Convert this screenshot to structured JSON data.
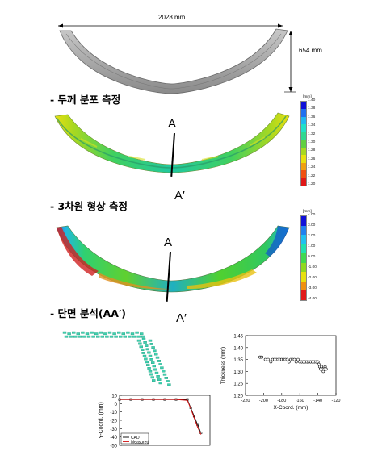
{
  "dimensions": {
    "width_label": "2028 mm",
    "height_label": "654 mm"
  },
  "sections": {
    "thickness": "- 두께 분포 측정",
    "shape3d": "- 3차원 형상 측정",
    "cross": "- 단면 분석(AA′)"
  },
  "markers": {
    "a": "A",
    "a_prime": "A′"
  },
  "thickness_scale": {
    "unit": "[mm]",
    "ticks": [
      "1.40",
      "1.38",
      "1.36",
      "1.34",
      "1.32",
      "1.30",
      "1.28",
      "1.26",
      "1.24",
      "1.22",
      "1.20"
    ],
    "colors": [
      "#1010d8",
      "#2070f0",
      "#20b8f0",
      "#20e0c8",
      "#30d890",
      "#60d040",
      "#a8d820",
      "#e8e010",
      "#f0a010",
      "#f05010",
      "#e01818"
    ]
  },
  "deviation_scale": {
    "unit": "[mm]",
    "ticks": [
      "4.00",
      "3.00",
      "2.00",
      "1.00",
      "0.00",
      "-1.00",
      "-2.00",
      "-3.00",
      "-4.00"
    ],
    "colors": [
      "#1010d8",
      "#2080f0",
      "#20c0f0",
      "#20e0b0",
      "#40d850",
      "#90d820",
      "#e8e010",
      "#f09010",
      "#e01818"
    ]
  },
  "chart_data": [
    {
      "type": "line",
      "title": "",
      "xlabel": "",
      "ylabel": "Y-Coord. (mm)",
      "ylim": [
        -50,
        10
      ],
      "y_ticks": [
        "10",
        "0",
        "-10",
        "-20",
        "-30",
        "-40",
        "-50"
      ],
      "legend": "bottom-left",
      "series": [
        {
          "name": "CAD",
          "x": [
            0,
            10,
            20,
            30,
            40,
            50,
            60,
            63,
            66,
            69,
            72
          ],
          "y": [
            5,
            5,
            5,
            5,
            5,
            5,
            5,
            -5,
            -15,
            -25,
            -35
          ]
        },
        {
          "name": "Measured",
          "x": [
            0,
            10,
            20,
            30,
            40,
            50,
            60,
            63,
            66,
            69,
            72
          ],
          "y": [
            5,
            5,
            5,
            5,
            5,
            5,
            4,
            -6,
            -17,
            -28,
            -37
          ]
        }
      ]
    },
    {
      "type": "scatter",
      "title": "",
      "xlabel": "X-Coord. (mm)",
      "ylabel": "Thickness (mm)",
      "xlim": [
        -220,
        -120
      ],
      "ylim": [
        1.2,
        1.45
      ],
      "x_ticks": [
        "-220",
        "-200",
        "-180",
        "-160",
        "-140",
        "-120"
      ],
      "y_ticks": [
        "1.45",
        "1.40",
        "1.35",
        "1.30",
        "1.25",
        "1.20"
      ],
      "series": [
        {
          "name": "",
          "x": [
            -204,
            -202,
            -198,
            -195,
            -192,
            -190,
            -188,
            -186,
            -184,
            -182,
            -180,
            -178,
            -176,
            -174,
            -172,
            -170,
            -168,
            -166,
            -164,
            -162,
            -160,
            -158,
            -156,
            -154,
            -152,
            -150,
            -148,
            -146,
            -144,
            -142,
            -140,
            -139,
            -138,
            -137,
            -136,
            -135,
            -134,
            -133,
            -132,
            -131
          ],
          "y": [
            1.36,
            1.36,
            1.35,
            1.35,
            1.34,
            1.35,
            1.35,
            1.35,
            1.35,
            1.35,
            1.35,
            1.35,
            1.35,
            1.35,
            1.34,
            1.35,
            1.35,
            1.35,
            1.34,
            1.35,
            1.34,
            1.34,
            1.34,
            1.34,
            1.34,
            1.34,
            1.34,
            1.34,
            1.34,
            1.34,
            1.34,
            1.33,
            1.32,
            1.31,
            1.32,
            1.31,
            1.3,
            1.31,
            1.32,
            1.31
          ]
        }
      ]
    }
  ]
}
